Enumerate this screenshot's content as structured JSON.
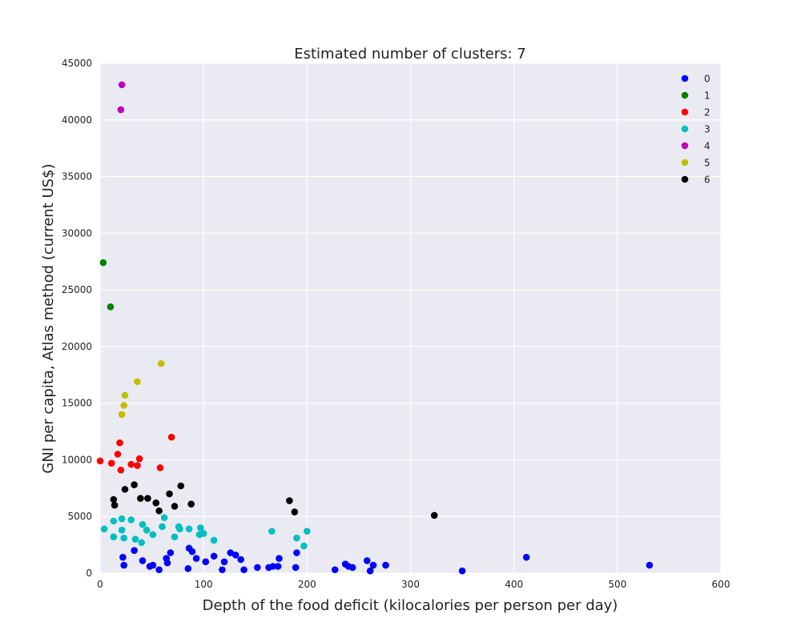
{
  "chart_data": {
    "type": "scatter",
    "title": "Estimated number of clusters: 7",
    "xlabel": "Depth of the food deficit (kilocalories per person per day)",
    "ylabel": "GNI per capita, Atlas method (current US$)",
    "xlim": [
      0,
      600
    ],
    "ylim": [
      0,
      45000
    ],
    "xticks": [
      "0",
      "100",
      "200",
      "300",
      "400",
      "500",
      "600"
    ],
    "yticks": [
      "0",
      "5000",
      "10000",
      "15000",
      "20000",
      "25000",
      "30000",
      "35000",
      "40000",
      "45000"
    ],
    "grid": true,
    "legend_position": "top-right",
    "series": [
      {
        "name": "0",
        "color": "#0000ff",
        "points": [
          [
            22,
            1400
          ],
          [
            23,
            700
          ],
          [
            41,
            1100
          ],
          [
            48,
            600
          ],
          [
            51,
            700
          ],
          [
            57,
            300
          ],
          [
            64,
            1300
          ],
          [
            65,
            900
          ],
          [
            68,
            1800
          ],
          [
            85,
            400
          ],
          [
            86,
            2200
          ],
          [
            89,
            1900
          ],
          [
            93,
            1300
          ],
          [
            102,
            1000
          ],
          [
            110,
            1500
          ],
          [
            118,
            300
          ],
          [
            120,
            1000
          ],
          [
            126,
            1800
          ],
          [
            131,
            1600
          ],
          [
            136,
            1200
          ],
          [
            139,
            300
          ],
          [
            152,
            500
          ],
          [
            163,
            500
          ],
          [
            167,
            600
          ],
          [
            172,
            600
          ],
          [
            173,
            1300
          ],
          [
            189,
            500
          ],
          [
            190,
            1800
          ],
          [
            227,
            300
          ],
          [
            237,
            800
          ],
          [
            240,
            600
          ],
          [
            244,
            500
          ],
          [
            258,
            1100
          ],
          [
            261,
            200
          ],
          [
            264,
            700
          ],
          [
            276,
            700
          ],
          [
            350,
            200
          ],
          [
            412,
            1400
          ],
          [
            531,
            700
          ],
          [
            33,
            2000
          ]
        ]
      },
      {
        "name": "1",
        "color": "#008000",
        "points": [
          [
            3,
            27400
          ],
          [
            10,
            23500
          ]
        ]
      },
      {
        "name": "2",
        "color": "#ff0000",
        "points": [
          [
            0,
            9900
          ],
          [
            11,
            9700
          ],
          [
            17,
            10500
          ],
          [
            19,
            11500
          ],
          [
            20,
            9100
          ],
          [
            30,
            9600
          ],
          [
            36,
            9500
          ],
          [
            38,
            10100
          ],
          [
            58,
            9300
          ],
          [
            69,
            12000
          ]
        ]
      },
      {
        "name": "3",
        "color": "#00bfbf",
        "points": [
          [
            4,
            3900
          ],
          [
            13,
            4600
          ],
          [
            13,
            3200
          ],
          [
            21,
            4800
          ],
          [
            21,
            3800
          ],
          [
            23,
            3100
          ],
          [
            30,
            4700
          ],
          [
            34,
            3000
          ],
          [
            40,
            2700
          ],
          [
            41,
            4300
          ],
          [
            45,
            3800
          ],
          [
            51,
            3400
          ],
          [
            60,
            4100
          ],
          [
            62,
            4900
          ],
          [
            72,
            3200
          ],
          [
            76,
            4100
          ],
          [
            77,
            3900
          ],
          [
            86,
            3900
          ],
          [
            96,
            3400
          ],
          [
            97,
            4000
          ],
          [
            100,
            3500
          ],
          [
            110,
            2900
          ],
          [
            166,
            3700
          ],
          [
            190,
            3100
          ],
          [
            197,
            2400
          ],
          [
            200,
            3700
          ]
        ]
      },
      {
        "name": "4",
        "color": "#bf00bf",
        "points": [
          [
            20,
            40900
          ],
          [
            21,
            43100
          ]
        ]
      },
      {
        "name": "5",
        "color": "#bfbf00",
        "points": [
          [
            21,
            14000
          ],
          [
            23,
            14800
          ],
          [
            24,
            15700
          ],
          [
            36,
            16900
          ],
          [
            59,
            18500
          ]
        ]
      },
      {
        "name": "6",
        "color": "#000000",
        "points": [
          [
            13,
            6500
          ],
          [
            14,
            6000
          ],
          [
            24,
            7400
          ],
          [
            33,
            7800
          ],
          [
            39,
            6600
          ],
          [
            46,
            6600
          ],
          [
            54,
            6200
          ],
          [
            57,
            5500
          ],
          [
            67,
            7000
          ],
          [
            72,
            5900
          ],
          [
            78,
            7700
          ],
          [
            88,
            6100
          ],
          [
            183,
            6400
          ],
          [
            188,
            5400
          ],
          [
            323,
            5100
          ]
        ]
      }
    ]
  }
}
